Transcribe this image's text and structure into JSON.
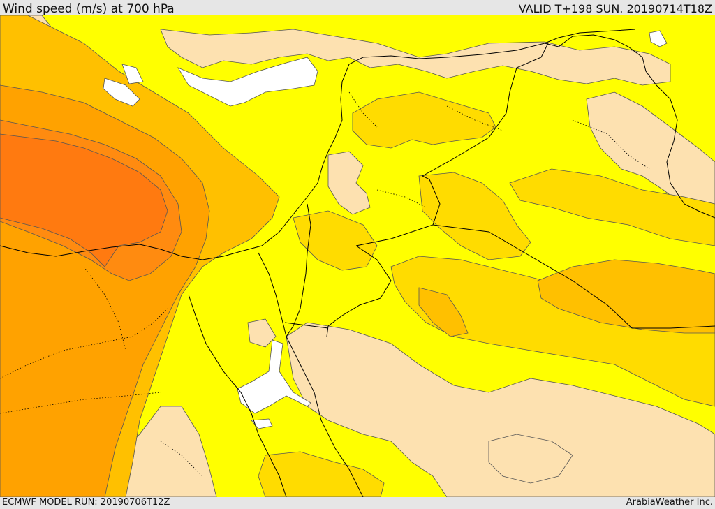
{
  "header": {
    "title": "Wind speed (m/s) at 700 hPa",
    "valid": "VALID T+198 SUN. 20190714T18Z"
  },
  "footer": {
    "model_run": "ECMWF MODEL RUN: 20190706T12Z",
    "credit": "ArabiaWeather Inc."
  },
  "map": {
    "variable": "wind speed",
    "units": "m/s",
    "pressure_level": "700 hPa",
    "colors": {
      "lightest": "#ffffff",
      "light": "#fde1b0",
      "low": "#ffff00",
      "medium": "#ffdc00",
      "moderate": "#ffc000",
      "strong": "#ffa200",
      "stronger": "#ff8b10",
      "strongest": "#ff7a10",
      "contour": "#555555",
      "border": "#000000"
    }
  }
}
